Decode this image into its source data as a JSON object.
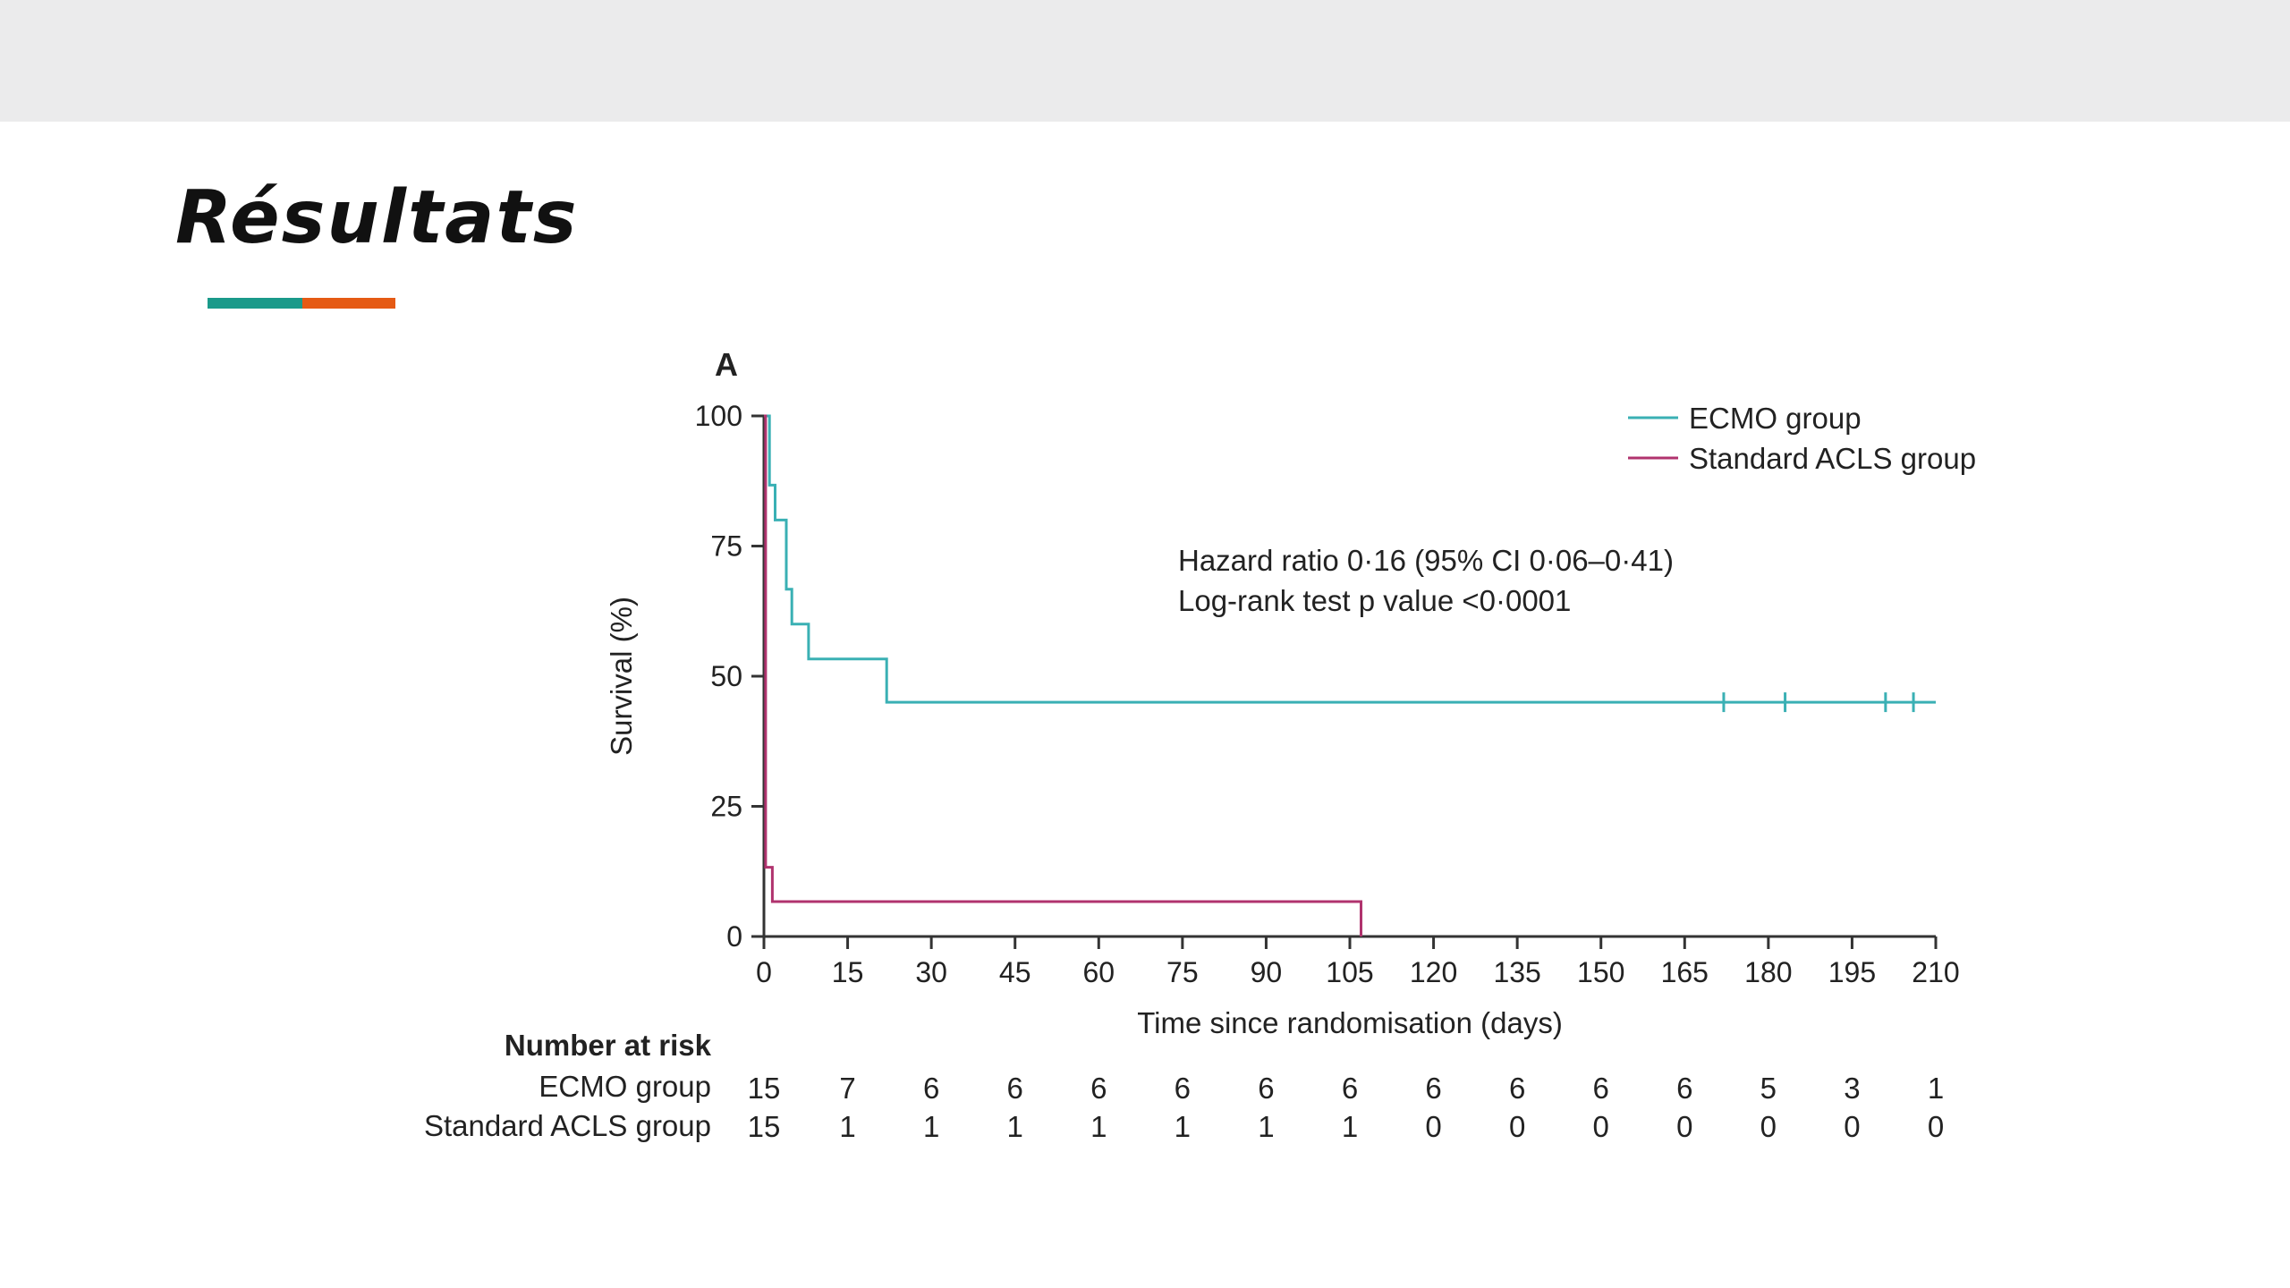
{
  "slide": {
    "title": "Résultats",
    "accent_colors": [
      "#1a9a8a",
      "#e55a14"
    ]
  },
  "chart_data": {
    "type": "line",
    "subtype": "kaplan-meier",
    "panel_label": "A",
    "ylabel": "Survival (%)",
    "xlabel": "Time since randomisation (days)",
    "xlim": [
      0,
      210
    ],
    "ylim": [
      0,
      100
    ],
    "x_ticks": [
      0,
      15,
      30,
      45,
      60,
      75,
      90,
      105,
      120,
      135,
      150,
      165,
      180,
      195,
      210
    ],
    "y_ticks": [
      0,
      25,
      50,
      75,
      100
    ],
    "legend_position": "top-right",
    "annotation": [
      "Hazard ratio 0·16 (95% CI 0·06–0·41)",
      "Log-rank test p value <0·0001"
    ],
    "series": [
      {
        "name": "ECMO group",
        "color": "#3ab0b4",
        "points": [
          [
            0,
            100
          ],
          [
            1,
            100
          ],
          [
            1,
            86.7
          ],
          [
            2,
            86.7
          ],
          [
            2,
            80
          ],
          [
            4,
            80
          ],
          [
            4,
            66.7
          ],
          [
            5,
            66.7
          ],
          [
            5,
            60
          ],
          [
            8,
            60
          ],
          [
            8,
            53.3
          ],
          [
            22,
            53.3
          ],
          [
            22,
            45
          ],
          [
            210,
            45
          ]
        ],
        "censored_x": [
          172,
          183,
          201,
          206
        ]
      },
      {
        "name": "Standard ACLS group",
        "color": "#b0336e",
        "points": [
          [
            0,
            100
          ],
          [
            0.3,
            100
          ],
          [
            0.3,
            13.3
          ],
          [
            1.5,
            13.3
          ],
          [
            1.5,
            6.7
          ],
          [
            107,
            6.7
          ],
          [
            107,
            0
          ]
        ],
        "censored_x": []
      }
    ],
    "number_at_risk": {
      "header": "Number at risk",
      "rows": [
        {
          "label": "ECMO group",
          "values": [
            "15",
            "7",
            "6",
            "6",
            "6",
            "6",
            "6",
            "6",
            "6",
            "6",
            "6",
            "6",
            "5",
            "3",
            "1"
          ]
        },
        {
          "label": "Standard ACLS group",
          "values": [
            "15",
            "1",
            "1",
            "1",
            "1",
            "1",
            "1",
            "1",
            "0",
            "0",
            "0",
            "0",
            "0",
            "0",
            "0"
          ]
        }
      ]
    }
  }
}
